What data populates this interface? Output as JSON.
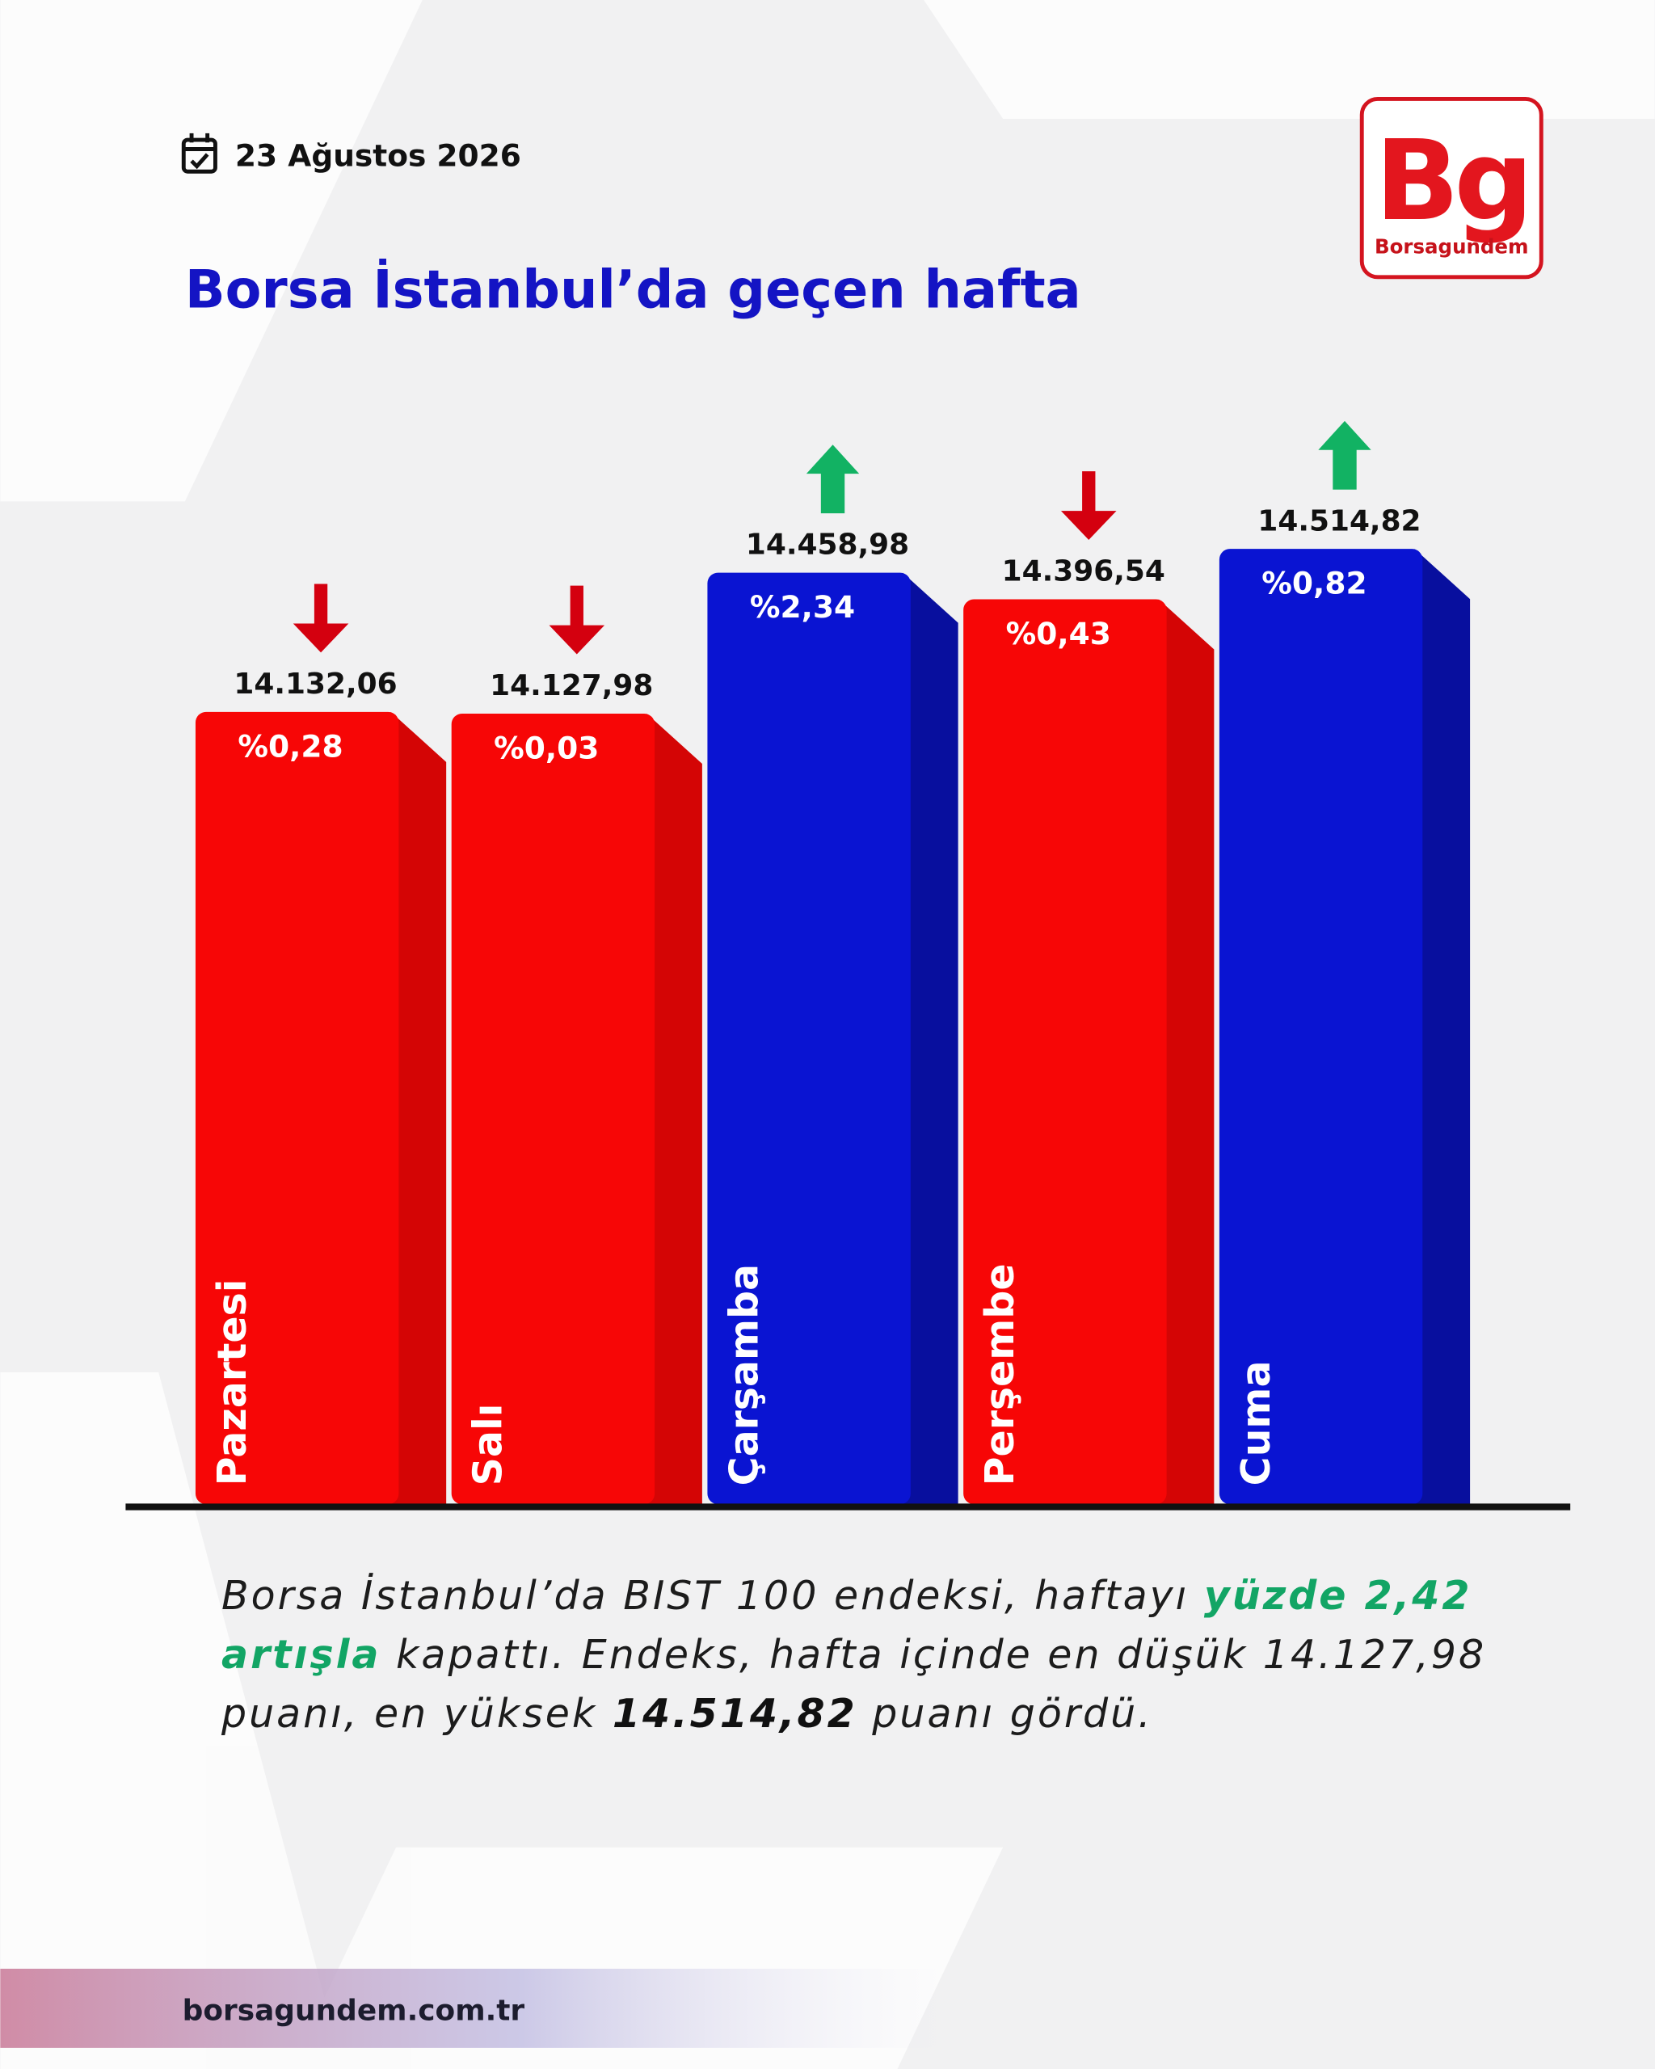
{
  "header": {
    "date": "23 Ağustos 2026",
    "logo": {
      "mark": "Bg",
      "name": "Borsagundem"
    }
  },
  "chart_data": {
    "type": "bar",
    "title": "Borsa İstanbul’da geçen hafta",
    "categories": [
      "Pazartesi",
      "Salı",
      "Çarşamba",
      "Perşembe",
      "Cuma"
    ],
    "values": [
      14132.06,
      14127.98,
      14458.98,
      14396.54,
      14514.82
    ],
    "value_labels": [
      "14.132,06",
      "14.127,98",
      "14.458,98",
      "14.396,54",
      "14.514,82"
    ],
    "change": {
      "values": [
        -0.28,
        -0.03,
        2.34,
        -0.43,
        0.82
      ],
      "value_labels": [
        "%0,28",
        "%0,03",
        "%2,34",
        "%0,43",
        "%0,82"
      ]
    },
    "colors": {
      "up": "#0a14d2",
      "down": "#f70606",
      "up_arrow": "#12b263",
      "down_arrow": "#d4000f"
    }
  },
  "summary": {
    "segments": [
      {
        "text": "Borsa İstanbul’da BIST 100 endeksi, haftayı "
      },
      {
        "text": "yüzde 2,42 artışla",
        "emphasis": "green"
      },
      {
        "text": " kapattı. Endeks, hafta içinde en düşük 14.127,98 puanı, en yüksek "
      },
      {
        "text": "14.514,82",
        "emphasis": "bold"
      },
      {
        "text": " puanı gördü."
      }
    ]
  },
  "footer": {
    "url": "borsagundem.com.tr"
  }
}
